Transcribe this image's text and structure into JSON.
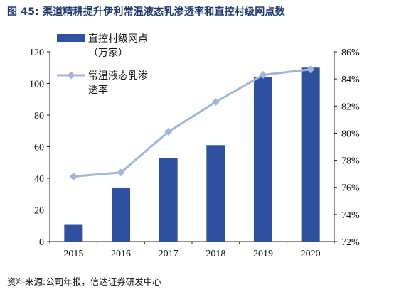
{
  "header": {
    "title": "图 45: 渠道精耕提升伊利常温液态乳渗透率和直控村级网点数"
  },
  "footer": {
    "source": "资料来源:公司年报，信达证券研发中心"
  },
  "chart_data": {
    "type": "bar+line",
    "categories": [
      "2015",
      "2016",
      "2017",
      "2018",
      "2019",
      "2020"
    ],
    "series": [
      {
        "name_lines": [
          "直控村级网点",
          "（万家）"
        ],
        "kind": "bar",
        "axis": "left",
        "color": "#2f52a0",
        "values": [
          11,
          34,
          53,
          61,
          104,
          110
        ]
      },
      {
        "name_lines": [
          "常温液态乳渗",
          "透率"
        ],
        "kind": "line",
        "axis": "right",
        "color": "#9fb6e0",
        "values": [
          76.8,
          77.1,
          80.1,
          82.3,
          84.3,
          84.7
        ]
      }
    ],
    "y_left": {
      "min": 0,
      "max": 120,
      "ticks": [
        "0",
        "20",
        "40",
        "60",
        "80",
        "100",
        "120"
      ]
    },
    "y_right": {
      "min": 72,
      "max": 86,
      "ticks": [
        "72%",
        "74%",
        "76%",
        "78%",
        "80%",
        "82%",
        "84%",
        "86%"
      ]
    },
    "grid": false,
    "legend_position": "top-left"
  }
}
